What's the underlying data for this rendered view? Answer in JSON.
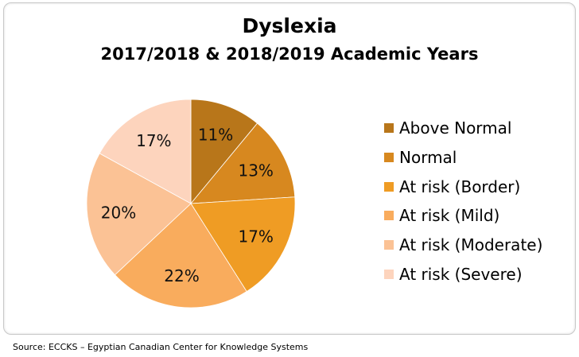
{
  "chart_data": {
    "type": "pie",
    "title": "Dyslexia",
    "subtitle": "2017/2018 & 2018/2019 Academic Years",
    "categories": [
      "Above Normal",
      "Normal",
      "At risk (Border)",
      "At risk (Mild)",
      "At risk (Moderate)",
      "At risk (Severe)"
    ],
    "values": [
      11,
      13,
      17,
      22,
      20,
      17
    ],
    "labels": [
      "11%",
      "13%",
      "17%",
      "22%",
      "20%",
      "17%"
    ],
    "colors": [
      "#b8761a",
      "#d7881f",
      "#ef9c24",
      "#f9ac5d",
      "#fbc295",
      "#fdd4bd"
    ],
    "legend": "right",
    "start": "top-clockwise"
  },
  "source": "Source: ECCKS – Egyptian Canadian  Center for Knowledge Systems"
}
